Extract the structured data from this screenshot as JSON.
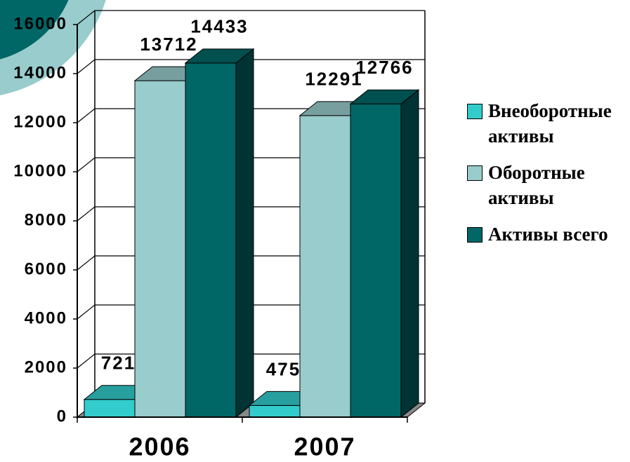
{
  "chart_data": {
    "type": "bar3d",
    "categories": [
      "2006",
      "2007"
    ],
    "series": [
      {
        "name": "Внеоборотные активы",
        "color": "#33cccc",
        "values": [
          721,
          475
        ]
      },
      {
        "name": "Оборотные активы",
        "color": "#99cccc",
        "values": [
          13712,
          12291
        ]
      },
      {
        "name": "Активы всего",
        "color": "#006666",
        "values": [
          14433,
          12766
        ]
      }
    ],
    "ylim": [
      0,
      16000
    ],
    "yticks": [
      0,
      2000,
      4000,
      6000,
      8000,
      10000,
      12000,
      14000,
      16000
    ],
    "grid": true,
    "legend": "right"
  }
}
